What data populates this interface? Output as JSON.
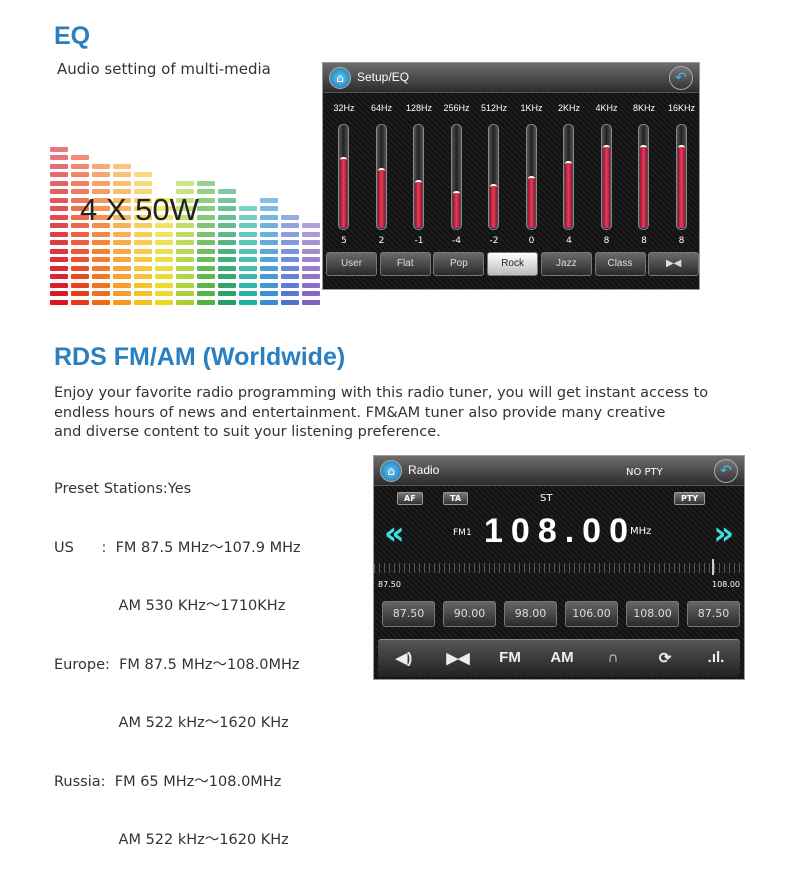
{
  "eq_section": {
    "title": "EQ",
    "subtitle": "Audio setting of multi-media",
    "power": "4 X 50W",
    "screen": {
      "title": "Setup/EQ",
      "home_icon": "home-icon",
      "back_icon": "back-arrow-icon",
      "bands": [
        {
          "freq": "32Hz",
          "value": 5
        },
        {
          "freq": "64Hz",
          "value": 2
        },
        {
          "freq": "128Hz",
          "value": -1
        },
        {
          "freq": "256Hz",
          "value": -4
        },
        {
          "freq": "512Hz",
          "value": -2
        },
        {
          "freq": "1KHz",
          "value": 0
        },
        {
          "freq": "2KHz",
          "value": 4
        },
        {
          "freq": "4KHz",
          "value": 8
        },
        {
          "freq": "8KHz",
          "value": 8
        },
        {
          "freq": "16KHz",
          "value": 8
        }
      ],
      "presets": [
        "User",
        "Flat",
        "Pop",
        "Rock",
        "Jazz",
        "Class"
      ],
      "selected_preset": "Rock",
      "balance_icon": "balance-icon"
    }
  },
  "rds_section": {
    "title": "RDS FM/AM (Worldwide)",
    "description": [
      "Enjoy your favorite radio programming with this radio tuner, you will get instant access to",
      "endless hours of news and entertainment. FM&AM tuner also provide many creative",
      "and diverse content to suit your listening preference."
    ],
    "specs": [
      "Preset Stations:Yes",
      "US      :  FM 87.5 MHz～107.9 MHz",
      "              AM 530 KHz～1710KHz",
      "Europe:  FM 87.5 MHz～108.0MHz",
      "              AM 522 kHz～1620 KHz",
      "Russia:  FM 65 MHz～108.0MHz",
      "              AM 522 kHz～1620 KHz"
    ],
    "screen": {
      "title": "Radio",
      "pty_status": "NO PTY",
      "af": "AF",
      "ta": "TA",
      "st": "ST",
      "pty": "PTY",
      "band": "FM1",
      "frequency": "108.00",
      "unit": "MHz",
      "range_min": "87.50",
      "range_max": "108.00",
      "presets": [
        "87.50",
        "90.00",
        "98.00",
        "106.00",
        "108.00",
        "87.50"
      ],
      "controls": {
        "fm": "FM",
        "am": "AM"
      }
    }
  },
  "colors": {
    "heading": "#2a7fc0",
    "eq_fill": "#e0405a",
    "seek_arrow": "#3de0e0"
  }
}
